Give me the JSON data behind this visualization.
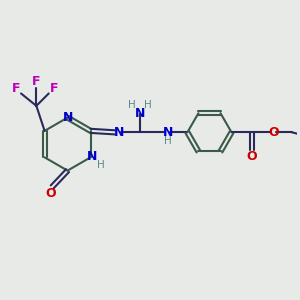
{
  "bg_color": "#e8eae8",
  "bond_color": "#2a2a5a",
  "N_color": "#0000cc",
  "O_color": "#cc0000",
  "F_color": "#bb00bb",
  "ring_color": "#3a5a4a",
  "H_color": "#5a8a8a",
  "figsize": [
    3.0,
    3.0
  ],
  "dpi": 100,
  "xlim": [
    0,
    10
  ],
  "ylim": [
    0,
    10
  ]
}
